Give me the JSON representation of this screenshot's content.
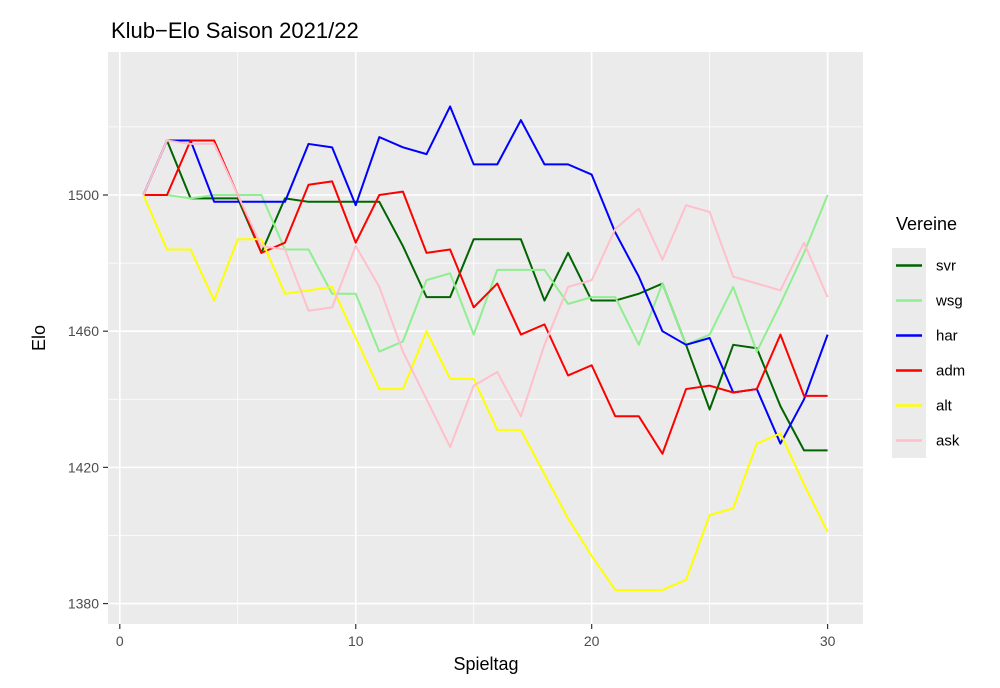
{
  "chart_data": {
    "type": "line",
    "title": "Klub−Elo Saison 2021/22",
    "xlabel": "Spieltag",
    "ylabel": "Elo",
    "xlim": [
      -0.5,
      31.5
    ],
    "ylim": [
      1374,
      1542
    ],
    "x_ticks": [
      0,
      10,
      20,
      30
    ],
    "y_ticks": [
      1380,
      1420,
      1460,
      1500
    ],
    "grid": true,
    "legend": {
      "title": "Vereine",
      "placement": "right"
    },
    "x": [
      1,
      2,
      3,
      4,
      5,
      6,
      7,
      8,
      9,
      10,
      11,
      12,
      13,
      14,
      15,
      16,
      17,
      18,
      19,
      20,
      21,
      22,
      23,
      24,
      25,
      26,
      27,
      28,
      29,
      30
    ],
    "series": [
      {
        "name": "svr",
        "color": "#006400",
        "values": [
          1500,
          1516,
          1499,
          1499,
          1499,
          1483,
          1499,
          1498,
          1498,
          1498,
          1498,
          1485,
          1470,
          1470,
          1487,
          1487,
          1487,
          1469,
          1483,
          1469,
          1469,
          1471,
          1474,
          1456,
          1437,
          1456,
          1455,
          1438,
          1425,
          1425
        ]
      },
      {
        "name": "wsg",
        "color": "#90ee90",
        "values": [
          1500,
          1500,
          1499,
          1500,
          1500,
          1500,
          1484,
          1484,
          1471,
          1471,
          1454,
          1457,
          1475,
          1477,
          1459,
          1478,
          1478,
          1478,
          1468,
          1470,
          1470,
          1456,
          1474,
          1456,
          1459,
          1473,
          1454,
          1468,
          1483,
          1500
        ]
      },
      {
        "name": "har",
        "color": "#0000ff",
        "values": [
          1500,
          1516,
          1516,
          1498,
          1498,
          1498,
          1498,
          1515,
          1514,
          1497,
          1517,
          1514,
          1512,
          1526,
          1509,
          1509,
          1522,
          1509,
          1509,
          1506,
          1489,
          1476,
          1460,
          1456,
          1458,
          1442,
          1443,
          1427,
          1440,
          1459
        ]
      },
      {
        "name": "adm",
        "color": "#ff0000",
        "values": [
          1500,
          1500,
          1516,
          1516,
          1500,
          1483,
          1486,
          1503,
          1504,
          1486,
          1500,
          1501,
          1483,
          1484,
          1467,
          1474,
          1459,
          1462,
          1447,
          1450,
          1435,
          1435,
          1424,
          1443,
          1444,
          1442,
          1443,
          1459,
          1441,
          1441
        ]
      },
      {
        "name": "alt",
        "color": "#ffff00",
        "values": [
          1500,
          1484,
          1484,
          1469,
          1487,
          1487,
          1471,
          1472,
          1473,
          1458,
          1443,
          1443,
          1460,
          1446,
          1446,
          1431,
          1431,
          1418,
          1405,
          1394,
          1384,
          1384,
          1384,
          1387,
          1406,
          1408,
          1427,
          1430,
          1415,
          1401
        ]
      },
      {
        "name": "ask",
        "color": "#ffc0cb",
        "values": [
          1500,
          1516,
          1515,
          1515,
          1500,
          1485,
          1484,
          1466,
          1467,
          1485,
          1473,
          1454,
          1440,
          1426,
          1444,
          1448,
          1435,
          1456,
          1473,
          1475,
          1490,
          1496,
          1481,
          1497,
          1495,
          1476,
          1474,
          1472,
          1486,
          1470
        ]
      }
    ]
  }
}
